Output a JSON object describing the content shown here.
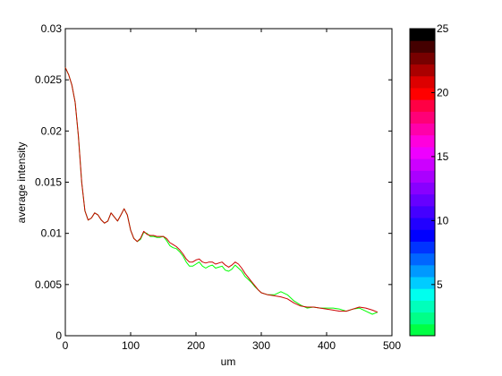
{
  "chart_data": {
    "type": "line",
    "xlabel": "um",
    "ylabel": "average intensity",
    "xlim": [
      0,
      500
    ],
    "ylim": [
      0,
      0.03
    ],
    "xticks": [
      "0",
      "100",
      "200",
      "300",
      "400",
      "500"
    ],
    "yticks": [
      "0",
      "0.005",
      "0.01",
      "0.015",
      "0.02",
      "0.025",
      "0.03"
    ],
    "grid": false,
    "series": [
      {
        "color": "#00ff00",
        "x": [
          0,
          5,
          10,
          15,
          20,
          25,
          30,
          35,
          40,
          45,
          50,
          55,
          60,
          65,
          70,
          75,
          80,
          85,
          90,
          95,
          100,
          105,
          110,
          115,
          120,
          125,
          130,
          135,
          140,
          145,
          150,
          155,
          160,
          165,
          170,
          175,
          180,
          185,
          190,
          195,
          200,
          205,
          210,
          215,
          220,
          225,
          230,
          235,
          240,
          245,
          250,
          255,
          260,
          265,
          270,
          275,
          280,
          285,
          290,
          295,
          300,
          310,
          320,
          330,
          340,
          350,
          360,
          370,
          380,
          390,
          400,
          410,
          420,
          430,
          440,
          450,
          460,
          470,
          478
        ],
        "y": [
          0.0262,
          0.0255,
          0.0245,
          0.0228,
          0.0195,
          0.015,
          0.0122,
          0.0113,
          0.0115,
          0.012,
          0.0118,
          0.0113,
          0.011,
          0.0112,
          0.012,
          0.0116,
          0.0112,
          0.0118,
          0.0124,
          0.0118,
          0.0103,
          0.0095,
          0.0092,
          0.0094,
          0.0101,
          0.01,
          0.0097,
          0.0097,
          0.0096,
          0.0096,
          0.0097,
          0.0093,
          0.0088,
          0.0086,
          0.0085,
          0.0082,
          0.0078,
          0.0072,
          0.0068,
          0.0068,
          0.007,
          0.0072,
          0.0068,
          0.0066,
          0.0068,
          0.0069,
          0.0066,
          0.0067,
          0.0068,
          0.0064,
          0.0063,
          0.0065,
          0.0069,
          0.0066,
          0.0063,
          0.0058,
          0.0055,
          0.0052,
          0.0048,
          0.0045,
          0.0042,
          0.004,
          0.004,
          0.0043,
          0.004,
          0.0034,
          0.003,
          0.0027,
          0.0028,
          0.0027,
          0.0027,
          0.0027,
          0.0026,
          0.0024,
          0.0026,
          0.0027,
          0.0024,
          0.0021,
          0.0023
        ]
      },
      {
        "color": "#cc0000",
        "x": [
          0,
          5,
          10,
          15,
          20,
          25,
          30,
          35,
          40,
          45,
          50,
          55,
          60,
          65,
          70,
          75,
          80,
          85,
          90,
          95,
          100,
          105,
          110,
          115,
          120,
          125,
          130,
          135,
          140,
          145,
          150,
          155,
          160,
          165,
          170,
          175,
          180,
          185,
          190,
          195,
          200,
          205,
          210,
          215,
          220,
          225,
          230,
          235,
          240,
          245,
          250,
          255,
          260,
          265,
          270,
          275,
          280,
          285,
          290,
          295,
          300,
          310,
          320,
          330,
          340,
          350,
          360,
          370,
          380,
          390,
          400,
          410,
          420,
          430,
          440,
          450,
          460,
          470,
          478
        ],
        "y": [
          0.0262,
          0.0255,
          0.0245,
          0.0228,
          0.0195,
          0.015,
          0.0122,
          0.0113,
          0.0115,
          0.012,
          0.0118,
          0.0113,
          0.011,
          0.0112,
          0.012,
          0.0116,
          0.0112,
          0.0118,
          0.0124,
          0.0118,
          0.0103,
          0.0095,
          0.0092,
          0.0095,
          0.0102,
          0.0099,
          0.0098,
          0.0098,
          0.0097,
          0.0097,
          0.0097,
          0.0095,
          0.0091,
          0.0089,
          0.0087,
          0.0084,
          0.008,
          0.0075,
          0.0072,
          0.0072,
          0.0074,
          0.0075,
          0.0072,
          0.0071,
          0.0072,
          0.0072,
          0.007,
          0.0071,
          0.0072,
          0.0069,
          0.0067,
          0.0069,
          0.0072,
          0.007,
          0.0066,
          0.0061,
          0.0057,
          0.0053,
          0.0049,
          0.0045,
          0.0042,
          0.004,
          0.0039,
          0.0038,
          0.0036,
          0.0032,
          0.0029,
          0.0028,
          0.0028,
          0.0027,
          0.0026,
          0.0025,
          0.0024,
          0.0024,
          0.0026,
          0.0028,
          0.0027,
          0.0025,
          0.0023
        ]
      }
    ],
    "colorbar": {
      "range": [
        1,
        25
      ],
      "ticks": [
        "5",
        "10",
        "15",
        "20",
        "25"
      ],
      "colors": [
        "#00ff44",
        "#00ff88",
        "#00ffbb",
        "#00ffee",
        "#00ccff",
        "#0099ff",
        "#0066ff",
        "#0033ff",
        "#0000ff",
        "#2200ff",
        "#4400ff",
        "#6600ff",
        "#8800ff",
        "#aa00ff",
        "#cc00ff",
        "#ee00ff",
        "#ff00dd",
        "#ff00aa",
        "#ff0077",
        "#ff0044",
        "#ff0000",
        "#dd0000",
        "#aa0000",
        "#770000",
        "#440000",
        "#000000"
      ]
    }
  }
}
